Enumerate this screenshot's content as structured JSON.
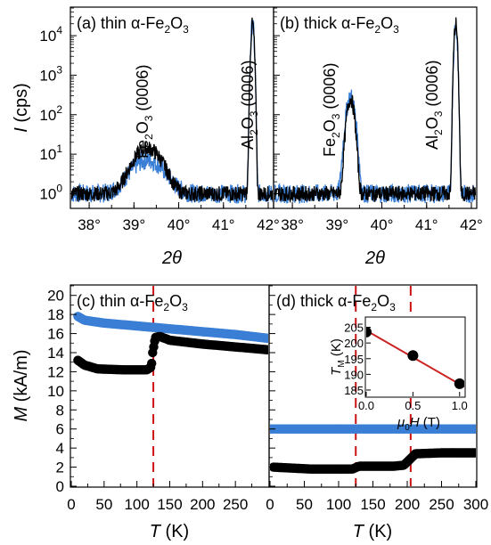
{
  "colors": {
    "black": "#000000",
    "blue": "#3a7fd5",
    "red": "#cc2222",
    "dash": "#cc1111"
  },
  "chart_data": [
    {
      "panel": "a",
      "type": "line",
      "title": {
        "prefix": "(a) thin α-Fe",
        "sub": "2",
        "mid": "O",
        "sub2": "3"
      },
      "xlabel": "2θ",
      "ylabel": {
        "main": "I",
        "unit": " (cps)"
      },
      "xlim": [
        37.6,
        42.1
      ],
      "ylim_log10": [
        -0.35,
        4.7
      ],
      "yscale": "log",
      "xticks": [
        38,
        39,
        40,
        41,
        42
      ],
      "xtick_labels": [
        "38°",
        "39°",
        "40°",
        "41°",
        "42°"
      ],
      "yticks": [
        1,
        10,
        100,
        1000,
        10000
      ],
      "ytick_labels": [
        [
          "10",
          "0"
        ],
        [
          "10",
          "1"
        ],
        [
          "10",
          "2"
        ],
        [
          "10",
          "3"
        ],
        [
          "10",
          "4"
        ]
      ],
      "annotations": [
        {
          "text": [
            "Fe",
            "2",
            "O",
            "3",
            " (0006)"
          ],
          "x": 39.3
        },
        {
          "text": [
            "Al",
            "2",
            "O",
            "3",
            " (0006)"
          ],
          "x": 41.65
        }
      ],
      "series": [
        {
          "color": "blue",
          "peaks": [
            {
              "x": 39.3,
              "amp": 6,
              "w": 0.3
            },
            {
              "x": 41.65,
              "amp": 20000,
              "w": 0.025
            }
          ]
        },
        {
          "color": "black",
          "peaks": [
            {
              "x": 39.3,
              "amp": 13,
              "w": 0.25
            },
            {
              "x": 41.65,
              "amp": 20000,
              "w": 0.025
            }
          ]
        }
      ]
    },
    {
      "panel": "b",
      "type": "line",
      "title": {
        "prefix": "(b) thick α-Fe",
        "sub": "2",
        "mid": "O",
        "sub2": "3"
      },
      "xlabel": "2θ",
      "xlim": [
        37.6,
        42.1
      ],
      "ylim_log10": [
        -0.35,
        4.7
      ],
      "yscale": "log",
      "xticks": [
        38,
        39,
        40,
        41,
        42
      ],
      "xtick_labels": [
        "38°",
        "39°",
        "40°",
        "41°",
        "42°"
      ],
      "annotations": [
        {
          "text": [
            "Fe",
            "2",
            "O",
            "3",
            " (0006)"
          ],
          "x": 39.3
        },
        {
          "text": [
            "Al",
            "2",
            "O",
            "3",
            " (0006)"
          ],
          "x": 41.65
        }
      ],
      "series": [
        {
          "color": "blue",
          "peaks": [
            {
              "x": 39.3,
              "amp": 280,
              "w": 0.07
            },
            {
              "x": 41.65,
              "amp": 20000,
              "w": 0.025
            }
          ]
        },
        {
          "color": "black",
          "peaks": [
            {
              "x": 39.3,
              "amp": 250,
              "w": 0.06
            },
            {
              "x": 41.65,
              "amp": 20000,
              "w": 0.025
            }
          ]
        }
      ]
    },
    {
      "panel": "c",
      "type": "scatter",
      "title": {
        "prefix": "(c) thin α-Fe",
        "sub": "2",
        "mid": "O",
        "sub2": "3"
      },
      "xlabel": {
        "main": "T",
        "unit": " (K)"
      },
      "ylabel": {
        "main": "M",
        "unit": " (kA/m)"
      },
      "xlim": [
        0,
        300
      ],
      "ylim": [
        0,
        21
      ],
      "xticks": [
        0,
        50,
        100,
        150,
        200,
        250
      ],
      "yticks": [
        0,
        2,
        4,
        6,
        8,
        10,
        12,
        14,
        16,
        18,
        20
      ],
      "dashed_x": 125,
      "series": [
        {
          "color": "blue",
          "points": [
            [
              10,
              17.8
            ],
            [
              20,
              17.4
            ],
            [
              50,
              17.1
            ],
            [
              100,
              16.8
            ],
            [
              150,
              16.5
            ],
            [
              200,
              16.2
            ],
            [
              250,
              15.9
            ],
            [
              300,
              15.5
            ]
          ]
        },
        {
          "color": "black",
          "points": [
            [
              10,
              13.2
            ],
            [
              20,
              12.7
            ],
            [
              40,
              12.3
            ],
            [
              80,
              12.2
            ],
            [
              115,
              12.2
            ],
            [
              122,
              12.5
            ],
            [
              124,
              14.0
            ],
            [
              128,
              15.6
            ],
            [
              135,
              15.7
            ],
            [
              150,
              15.3
            ],
            [
              200,
              14.9
            ],
            [
              250,
              14.6
            ],
            [
              300,
              14.3
            ]
          ]
        }
      ]
    },
    {
      "panel": "d",
      "type": "scatter",
      "title": {
        "prefix": "(d) thick α-Fe",
        "sub": "2",
        "mid": "O",
        "sub2": "3"
      },
      "xlabel": {
        "main": "T",
        "unit": " (K)"
      },
      "xlim": [
        0,
        300
      ],
      "ylim": [
        0,
        21
      ],
      "xticks": [
        0,
        50,
        100,
        150,
        200,
        250,
        300
      ],
      "dashed_x": [
        125,
        205
      ],
      "series": [
        {
          "color": "blue",
          "points": [
            [
              0,
              6.0
            ],
            [
              100,
              6.0
            ],
            [
              200,
              6.0
            ],
            [
              300,
              6.0
            ]
          ]
        },
        {
          "color": "black",
          "points": [
            [
              5,
              2.0
            ],
            [
              60,
              1.8
            ],
            [
              120,
              1.8
            ],
            [
              130,
              2.1
            ],
            [
              180,
              2.1
            ],
            [
              195,
              2.2
            ],
            [
              205,
              2.9
            ],
            [
              212,
              3.4
            ],
            [
              250,
              3.5
            ],
            [
              300,
              3.5
            ]
          ]
        }
      ],
      "inset": {
        "type": "scatter",
        "xlabel": {
          "a": "μ",
          "b": "0",
          "c": "H",
          "d": " (T)"
        },
        "ylabel": {
          "a": "T",
          "b": "M",
          "c": " (K)"
        },
        "xlim": [
          0,
          1.05
        ],
        "ylim": [
          183,
          208
        ],
        "xticks": [
          0.0,
          0.5,
          1.0
        ],
        "xtick_labels": [
          "0.0",
          "0.5",
          "1.0"
        ],
        "yticks": [
          185,
          190,
          195,
          200,
          205
        ],
        "points": [
          [
            0.0,
            203.5
          ],
          [
            0.5,
            196.0
          ],
          [
            1.0,
            187.0
          ]
        ],
        "fit": [
          [
            0.0,
            204.0
          ],
          [
            1.05,
            186.0
          ]
        ]
      }
    }
  ]
}
